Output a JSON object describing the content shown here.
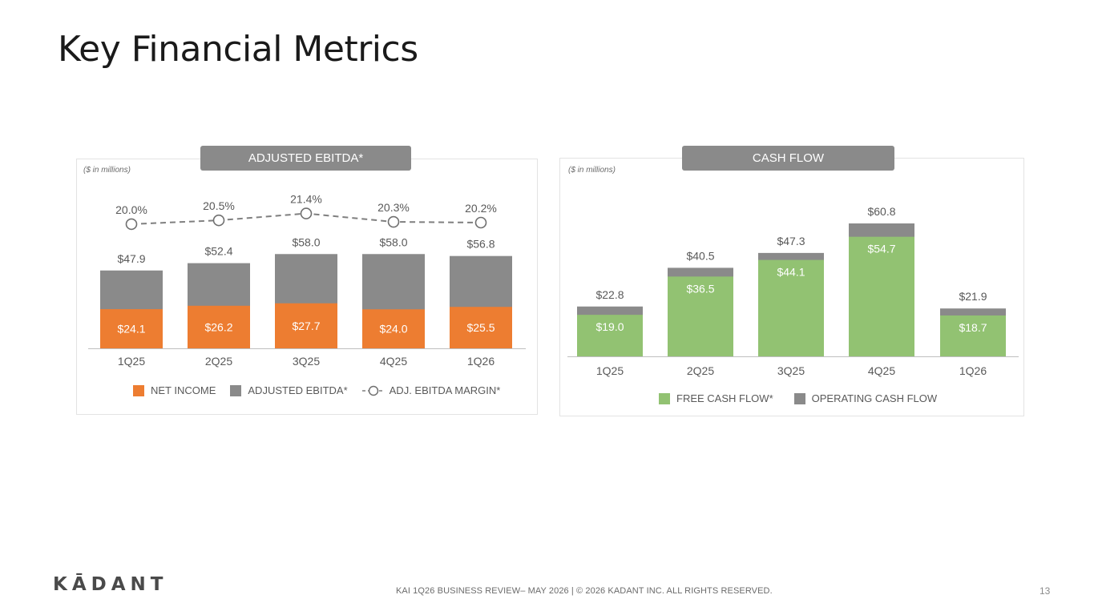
{
  "slide": {
    "title": "Key Financial Metrics",
    "footer": "KAI 1Q26 BUSINESS REVIEW– MAY 2026  |  © 2026 KADANT INC. ALL RIGHTS RESERVED.",
    "page_number": "13",
    "logo_text": "KĀDANT"
  },
  "colors": {
    "net_income": "#ed7d31",
    "adjusted_ebitda": "#8a8a8a",
    "margin_line": "#7f7f7f",
    "free_cash_flow": "#92c272",
    "operating_cash_flow": "#8a8a8a",
    "panel_tag": "#8a8a8a"
  },
  "chart_data": [
    {
      "type": "bar",
      "title": "ADJUSTED EBITDA*",
      "units_note": "($ in millions)",
      "categories": [
        "1Q25",
        "2Q25",
        "3Q25",
        "4Q25",
        "1Q26"
      ],
      "series": [
        {
          "name": "NET INCOME",
          "values": [
            24.1,
            26.2,
            27.7,
            24.0,
            25.5
          ],
          "labels": [
            "$24.1",
            "$26.2",
            "$27.7",
            "$24.0",
            "$25.5"
          ]
        },
        {
          "name": "ADJUSTED EBITDA*",
          "values": [
            47.9,
            52.4,
            58.0,
            58.0,
            56.8
          ],
          "labels": [
            "$47.9",
            "$52.4",
            "$58.0",
            "$58.0",
            "$56.8"
          ]
        },
        {
          "name": "ADJ. EBITDA MARGIN*",
          "type": "line",
          "values": [
            20.0,
            20.5,
            21.4,
            20.3,
            20.2
          ],
          "labels": [
            "20.0%",
            "20.5%",
            "21.4%",
            "20.3%",
            "20.2%"
          ]
        }
      ],
      "legend": "bottom",
      "grid": false
    },
    {
      "type": "bar",
      "title": "CASH FLOW",
      "units_note": "($ in millions)",
      "categories": [
        "1Q25",
        "2Q25",
        "3Q25",
        "4Q25",
        "1Q26"
      ],
      "series": [
        {
          "name": "FREE CASH FLOW*",
          "values": [
            19.0,
            36.5,
            44.1,
            54.7,
            18.7
          ],
          "labels": [
            "$19.0",
            "$36.5",
            "$44.1",
            "$54.7",
            "$18.7"
          ]
        },
        {
          "name": "OPERATING CASH FLOW",
          "values": [
            22.8,
            40.5,
            47.3,
            60.8,
            21.9
          ],
          "labels": [
            "$22.8",
            "$40.5",
            "$47.3",
            "$60.8",
            "$21.9"
          ]
        }
      ],
      "legend": "bottom",
      "grid": false
    }
  ]
}
